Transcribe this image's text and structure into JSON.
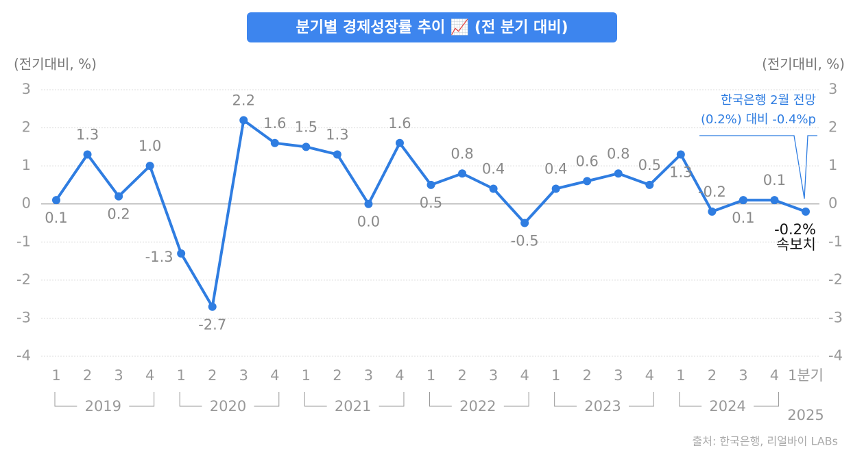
{
  "chart_data": {
    "type": "line",
    "title": "분기별 경제성장률 추이 📈 (전 분기 대비)",
    "y_axis_label": "(전기대비, %)",
    "y2_axis_label": "(전기대비, %)",
    "categories": [
      "1",
      "2",
      "3",
      "4",
      "1",
      "2",
      "3",
      "4",
      "1",
      "2",
      "3",
      "4",
      "1",
      "2",
      "3",
      "4",
      "1",
      "2",
      "3",
      "4",
      "1",
      "2",
      "3",
      "4",
      "1분기"
    ],
    "years": [
      "2019",
      "2020",
      "2021",
      "2022",
      "2023",
      "2024",
      "2025"
    ],
    "series": [
      {
        "name": "경제성장률",
        "color": "#2f7de1",
        "values": [
          0.1,
          1.3,
          0.2,
          1.0,
          -1.3,
          -2.7,
          2.2,
          1.6,
          1.5,
          1.3,
          0.0,
          1.6,
          0.5,
          0.8,
          0.4,
          -0.5,
          0.4,
          0.6,
          0.8,
          0.5,
          1.3,
          -0.2,
          0.1,
          0.1,
          -0.2
        ],
        "value_labels": [
          "0.1",
          "1.3",
          "0.2",
          "1.0",
          "-1.3",
          "-2.7",
          "2.2",
          "1.6",
          "1.5",
          "1.3",
          "0.0",
          "1.6",
          "0.5",
          "0.8",
          "0.4",
          "-0.5",
          "0.4",
          "0.6",
          "0.8",
          "0.5",
          "1.3",
          "-0.2",
          "0.1",
          "0.1",
          "-0.2%"
        ]
      }
    ],
    "ylim": [
      -4,
      3
    ],
    "yticks": [
      -4,
      -3,
      -2,
      -1,
      0,
      1,
      2,
      3
    ],
    "y2lim": [
      -4,
      3
    ],
    "y2ticks": [
      -4,
      -3,
      -2,
      -1,
      0,
      1,
      2,
      3
    ],
    "grid": true,
    "annotations": [
      "속보치",
      "한국은행 2월 전망",
      "(0.2%) 대비 -0.4%p"
    ],
    "source": "출처: 한국은행, 리얼바이 LABs"
  }
}
